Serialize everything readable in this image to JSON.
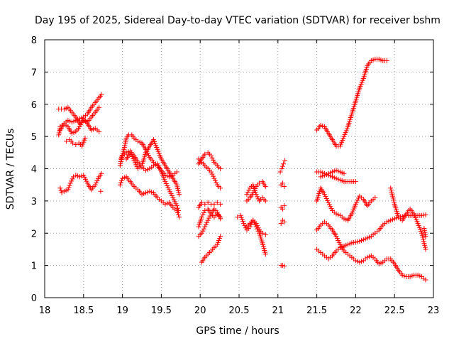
{
  "chart_data": {
    "type": "scatter",
    "title": "Day 195 of 2025, Sidereal Day-to-day VTEC variation (SDTVAR) for receiver bshm",
    "xlabel": "GPS time / hours",
    "ylabel": "SDTVAR / TECUs",
    "xlim": [
      18,
      23
    ],
    "ylim": [
      0,
      8
    ],
    "xticks": [
      "18",
      "18.5",
      "19",
      "19.5",
      "20",
      "20.5",
      "21",
      "21.5",
      "22",
      "22.5",
      "23"
    ],
    "yticks": [
      "0",
      "1",
      "2",
      "3",
      "4",
      "5",
      "6",
      "7",
      "8"
    ],
    "grid": true,
    "marker": "+",
    "color": "#ff0000",
    "series": [
      {
        "name": "t1",
        "x": [
          18.18,
          18.25,
          18.3,
          18.35,
          18.4,
          18.45,
          18.5,
          18.55,
          18.6,
          18.65,
          18.7
        ],
        "y": [
          5.85,
          5.85,
          5.9,
          5.75,
          5.6,
          5.4,
          5.5,
          5.45,
          5.6,
          5.75,
          5.9
        ]
      },
      {
        "name": "t2",
        "x": [
          18.2,
          18.25,
          18.3,
          18.35,
          18.4,
          18.45,
          18.5,
          18.55,
          18.6,
          18.65,
          18.7,
          18.73
        ],
        "y": [
          5.2,
          5.4,
          5.5,
          5.45,
          5.5,
          5.55,
          5.6,
          5.7,
          5.9,
          6.05,
          6.2,
          6.3
        ]
      },
      {
        "name": "t3",
        "x": [
          18.18,
          18.2,
          18.25,
          18.3,
          18.35,
          18.4,
          18.45,
          18.5,
          18.55,
          18.6,
          18.65,
          18.7
        ],
        "y": [
          5.05,
          5.3,
          5.4,
          5.3,
          5.1,
          5.15,
          5.3,
          5.55,
          5.4,
          5.2,
          5.25,
          5.15
        ]
      },
      {
        "name": "t4",
        "x": [
          18.28,
          18.32,
          18.36,
          18.4,
          18.44,
          18.48,
          18.52
        ],
        "y": [
          4.85,
          4.9,
          4.8,
          4.75,
          4.8,
          4.7,
          4.95
        ]
      },
      {
        "name": "t5",
        "x": [
          18.2,
          18.22,
          18.25,
          18.3,
          18.33,
          18.37,
          18.4,
          18.45,
          18.5,
          18.55,
          18.6,
          18.65,
          18.7,
          18.73
        ],
        "y": [
          3.4,
          3.25,
          3.3,
          3.35,
          3.55,
          3.75,
          3.8,
          3.75,
          3.8,
          3.55,
          3.35,
          3.5,
          3.75,
          3.85
        ]
      },
      {
        "name": "t6",
        "x": [
          18.72
        ],
        "y": [
          3.3
        ]
      },
      {
        "name": "t7",
        "x": [
          18.98,
          19.02,
          19.05,
          19.08,
          19.12,
          19.15,
          19.2,
          19.25,
          19.3,
          19.35,
          19.4,
          19.45,
          19.5,
          19.55,
          19.6,
          19.65,
          19.7
        ],
        "y": [
          4.3,
          4.6,
          4.95,
          5.05,
          5.05,
          4.95,
          4.85,
          4.8,
          4.6,
          4.35,
          4.2,
          4.1,
          3.95,
          3.8,
          3.75,
          3.8,
          3.9
        ]
      },
      {
        "name": "t8",
        "x": [
          18.97,
          19.0,
          19.05,
          19.1,
          19.15,
          19.2,
          19.25,
          19.3,
          19.35,
          19.4,
          19.45,
          19.5,
          19.55,
          19.6,
          19.65,
          19.7,
          19.72
        ],
        "y": [
          4.1,
          4.4,
          4.5,
          4.55,
          4.4,
          4.2,
          4.05,
          3.95,
          4.0,
          4.1,
          4.15,
          3.9,
          3.6,
          3.35,
          3.1,
          2.85,
          2.7
        ]
      },
      {
        "name": "t9",
        "x": [
          19.05,
          19.1,
          19.15,
          19.2,
          19.25,
          19.3,
          19.35,
          19.4,
          19.45,
          19.5,
          19.55,
          19.6,
          19.65,
          19.7,
          19.73
        ],
        "y": [
          4.3,
          4.5,
          4.25,
          4.0,
          4.1,
          4.5,
          4.7,
          4.9,
          4.6,
          4.3,
          4.1,
          3.9,
          3.7,
          3.5,
          3.2
        ]
      },
      {
        "name": "t10",
        "x": [
          18.97,
          19.0,
          19.05,
          19.1,
          19.15,
          19.2,
          19.25,
          19.3,
          19.35,
          19.4,
          19.45,
          19.5,
          19.55,
          19.6,
          19.65,
          19.7,
          19.73
        ],
        "y": [
          3.5,
          3.7,
          3.75,
          3.6,
          3.45,
          3.35,
          3.2,
          3.25,
          3.3,
          3.25,
          3.1,
          3.0,
          2.9,
          2.95,
          2.8,
          2.7,
          2.5
        ]
      },
      {
        "name": "t11",
        "x": [
          19.98,
          20.02,
          20.06,
          20.1,
          20.14,
          20.18,
          20.22,
          20.26
        ],
        "y": [
          4.15,
          4.3,
          4.45,
          4.5,
          4.4,
          4.2,
          4.1,
          4.0
        ]
      },
      {
        "name": "t12",
        "x": [
          19.98,
          20.02,
          20.06,
          20.1,
          20.14,
          20.18,
          20.22,
          20.26
        ],
        "y": [
          4.3,
          4.2,
          4.1,
          4.0,
          3.9,
          3.7,
          3.5,
          3.4
        ]
      },
      {
        "name": "t13",
        "x": [
          19.98,
          20.02,
          20.06,
          20.1,
          20.14,
          20.18,
          20.22,
          20.26
        ],
        "y": [
          2.8,
          2.95,
          2.9,
          2.95,
          2.9,
          2.9,
          2.95,
          2.9
        ]
      },
      {
        "name": "t14",
        "x": [
          19.98,
          20.02,
          20.06,
          20.1,
          20.14,
          20.18,
          20.22,
          20.26
        ],
        "y": [
          2.2,
          2.5,
          2.7,
          2.75,
          2.6,
          2.5,
          2.6,
          2.5
        ]
      },
      {
        "name": "t15",
        "x": [
          19.98,
          20.02,
          20.06,
          20.1,
          20.14,
          20.18,
          20.22,
          20.26
        ],
        "y": [
          1.9,
          2.0,
          2.2,
          2.4,
          2.6,
          2.75,
          2.65,
          2.45
        ]
      },
      {
        "name": "t16",
        "x": [
          20.02,
          20.06,
          20.1,
          20.14,
          20.18,
          20.22,
          20.26
        ],
        "y": [
          1.1,
          1.25,
          1.35,
          1.45,
          1.55,
          1.65,
          1.9
        ]
      },
      {
        "name": "t17",
        "x": [
          20.48,
          20.52,
          20.56,
          20.6,
          20.64,
          20.68,
          20.72,
          20.76,
          20.8,
          20.84
        ],
        "y": [
          2.5,
          2.55,
          2.3,
          2.1,
          2.2,
          2.4,
          2.3,
          2.1,
          2.0,
          1.95
        ]
      },
      {
        "name": "t18",
        "x": [
          20.6,
          20.64,
          20.68,
          20.72,
          20.76,
          20.8,
          20.84
        ],
        "y": [
          3.2,
          3.4,
          3.5,
          3.2,
          3.0,
          3.1,
          3.0
        ]
      },
      {
        "name": "t19",
        "x": [
          20.6,
          20.64,
          20.68,
          20.72,
          20.76,
          20.8,
          20.84
        ],
        "y": [
          3.0,
          3.1,
          3.25,
          3.45,
          3.55,
          3.6,
          3.45
        ]
      },
      {
        "name": "t20",
        "x": [
          20.6,
          20.64,
          20.68,
          20.72,
          20.76,
          20.8,
          20.84
        ],
        "y": [
          2.2,
          2.3,
          2.4,
          2.2,
          2.0,
          1.7,
          1.35
        ]
      },
      {
        "name": "t21",
        "x": [
          21.03,
          21.05,
          21.07,
          21.09
        ],
        "y": [
          3.9,
          4.0,
          4.15,
          4.25
        ]
      },
      {
        "name": "t22",
        "x": [
          21.04,
          21.06,
          21.08
        ],
        "y": [
          3.5,
          3.55,
          3.45
        ]
      },
      {
        "name": "t23",
        "x": [
          21.04,
          21.06,
          21.08
        ],
        "y": [
          2.8,
          2.75,
          2.85
        ]
      },
      {
        "name": "t24",
        "x": [
          21.04,
          21.06,
          21.08
        ],
        "y": [
          2.3,
          2.4,
          2.35
        ]
      },
      {
        "name": "t25",
        "x": [
          21.04,
          21.06,
          21.08
        ],
        "y": [
          1.0,
          1.0,
          0.98
        ]
      },
      {
        "name": "t26",
        "x": [
          21.5,
          21.55,
          21.6,
          21.65,
          21.7,
          21.75,
          21.8,
          21.85,
          21.9,
          21.95,
          22.0,
          22.05,
          22.1,
          22.15,
          22.2,
          22.25,
          22.3,
          22.35,
          22.4
        ],
        "y": [
          5.2,
          5.35,
          5.3,
          5.1,
          4.9,
          4.7,
          4.7,
          5.0,
          5.3,
          5.7,
          6.1,
          6.5,
          6.8,
          7.2,
          7.35,
          7.4,
          7.4,
          7.35,
          7.35
        ]
      },
      {
        "name": "t27",
        "x": [
          21.5,
          21.55,
          21.6,
          21.65,
          21.7,
          21.75,
          21.8,
          21.85,
          21.9,
          21.95,
          22.0
        ],
        "y": [
          3.9,
          3.9,
          3.85,
          3.8,
          3.75,
          3.7,
          3.65,
          3.6,
          3.6,
          3.6,
          3.6
        ]
      },
      {
        "name": "t28",
        "x": [
          21.55,
          21.6,
          21.65,
          21.7,
          21.75,
          21.8,
          21.85
        ],
        "y": [
          3.75,
          3.8,
          3.85,
          3.9,
          3.95,
          3.9,
          3.85
        ]
      },
      {
        "name": "t29",
        "x": [
          21.5,
          21.55,
          21.6,
          21.65,
          21.7,
          21.75,
          21.8,
          21.85,
          21.9,
          21.95,
          22.0,
          22.05,
          22.1,
          22.15,
          22.2,
          22.25
        ],
        "y": [
          3.0,
          3.4,
          3.2,
          2.95,
          2.7,
          2.6,
          2.55,
          2.45,
          2.4,
          2.6,
          2.9,
          3.15,
          3.05,
          2.85,
          3.0,
          3.1
        ]
      },
      {
        "name": "t30",
        "x": [
          21.5,
          21.55,
          21.6,
          21.65,
          21.7,
          21.75,
          21.8,
          21.85,
          21.9,
          21.95,
          22.0,
          22.05,
          22.1,
          22.15,
          22.2,
          22.25,
          22.3,
          22.35,
          22.4,
          22.45,
          22.5,
          22.55,
          22.6,
          22.65,
          22.7,
          22.75,
          22.8,
          22.85,
          22.9
        ],
        "y": [
          1.5,
          1.4,
          1.3,
          1.2,
          1.3,
          1.45,
          1.55,
          1.6,
          1.65,
          1.7,
          1.72,
          1.75,
          1.8,
          1.85,
          1.9,
          2.0,
          2.1,
          2.25,
          2.35,
          2.4,
          2.45,
          2.5,
          2.52,
          2.55,
          2.55,
          2.55,
          2.55,
          2.55,
          2.57
        ]
      },
      {
        "name": "t31",
        "x": [
          21.5,
          21.55,
          21.6,
          21.65,
          21.7,
          21.75,
          21.8,
          21.85,
          21.9,
          21.95,
          22.0,
          22.05,
          22.1,
          22.15,
          22.2,
          22.25,
          22.3,
          22.35,
          22.4,
          22.45,
          22.5,
          22.55,
          22.6,
          22.65,
          22.7,
          22.75,
          22.8,
          22.85,
          22.9
        ],
        "y": [
          2.1,
          2.25,
          2.35,
          2.25,
          2.1,
          1.9,
          1.65,
          1.45,
          1.35,
          1.25,
          1.15,
          1.1,
          1.15,
          1.25,
          1.3,
          1.2,
          1.05,
          1.1,
          1.2,
          1.2,
          1.05,
          0.85,
          0.7,
          0.65,
          0.65,
          0.7,
          0.7,
          0.65,
          0.55
        ]
      },
      {
        "name": "t32",
        "x": [
          22.45,
          22.5,
          22.55,
          22.6,
          22.65,
          22.7,
          22.75,
          22.8,
          22.85,
          22.9
        ],
        "y": [
          3.4,
          2.9,
          2.5,
          2.4,
          2.6,
          2.75,
          2.6,
          2.3,
          2.0,
          1.5
        ]
      },
      {
        "name": "t33",
        "x": [
          22.88,
          22.9
        ],
        "y": [
          2.15,
          1.9
        ]
      }
    ]
  }
}
